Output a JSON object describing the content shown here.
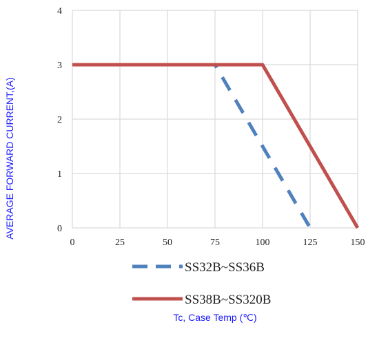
{
  "chart_data": {
    "type": "line",
    "title": "",
    "xlabel": "Tc, Case Temp (℃)",
    "ylabel": "AVERAGE FORWARD CURRENT,(A)",
    "xlim": [
      0,
      150
    ],
    "ylim": [
      0,
      4
    ],
    "x_ticks": [
      "0",
      "25",
      "50",
      "75",
      "100",
      "125",
      "150"
    ],
    "y_ticks": [
      "0",
      "1",
      "2",
      "3",
      "4"
    ],
    "grid": true,
    "legend_position": "bottom-center",
    "series": [
      {
        "name": "SS32B~SS36B",
        "color": "#4f81bd",
        "style": "dashed",
        "x": [
          0,
          75,
          125
        ],
        "y": [
          3,
          3,
          0
        ]
      },
      {
        "name": "SS38B~SS320B",
        "color": "#c0504d",
        "style": "solid",
        "x": [
          0,
          100,
          150
        ],
        "y": [
          3,
          3,
          0
        ]
      }
    ]
  }
}
